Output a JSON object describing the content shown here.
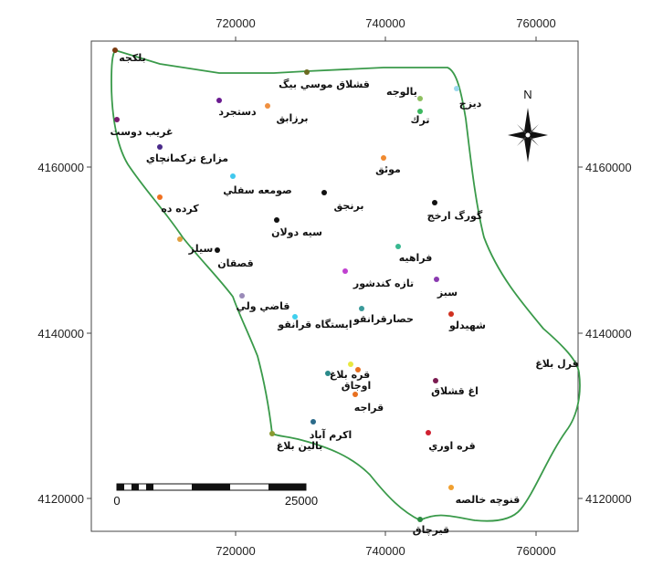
{
  "map": {
    "x_ticks": [
      "720000",
      "740000",
      "760000"
    ],
    "y_ticks": [
      "4160000",
      "4140000",
      "4120000"
    ],
    "boundary_color": "#3a9a4a",
    "north_label": "N",
    "scale_bar": {
      "start": "0",
      "end": "25000"
    }
  },
  "places": [
    {
      "name": "بلكجه",
      "color": "#7a3a10"
    },
    {
      "name": "قشلاق موسي بيگ",
      "color": "#6b6b20"
    },
    {
      "name": "يالوجه",
      "color": "#8fc060"
    },
    {
      "name": "ديزج",
      "color": "#9ad8ee"
    },
    {
      "name": "ترك",
      "color": "#3cb860"
    },
    {
      "name": "دستجرد",
      "color": "#6a1a90"
    },
    {
      "name": "برزابق",
      "color": "#f09040"
    },
    {
      "name": "غريب دوست",
      "color": "#7a1a70"
    },
    {
      "name": "مزارع تركمانچاي",
      "color": "#4a2a8a"
    },
    {
      "name": "صومعه سفلي",
      "color": "#40c8ee"
    },
    {
      "name": "موئق",
      "color": "#f08a30"
    },
    {
      "name": "برنجق",
      "color": "#111111"
    },
    {
      "name": "گورگ ارخج",
      "color": "#111111"
    },
    {
      "name": "كرده ده",
      "color": "#f07020"
    },
    {
      "name": "سيه دولان",
      "color": "#111111"
    },
    {
      "name": "فراهيه",
      "color": "#38b890"
    },
    {
      "name": "سيلز",
      "color": "#e0a040"
    },
    {
      "name": "قصقان",
      "color": "#111111"
    },
    {
      "name": "تازه كندشور",
      "color": "#c040d0"
    },
    {
      "name": "سبز",
      "color": "#8a3ab0"
    },
    {
      "name": "قاضي ولي",
      "color": "#9a8ab8"
    },
    {
      "name": "ايستگاه قرانقو",
      "color": "#40d0ee"
    },
    {
      "name": "حصارقرانقو",
      "color": "#3a9a9a"
    },
    {
      "name": "شهيدلو",
      "color": "#d03020"
    },
    {
      "name": "قرل بلاغ",
      "color": "#e8e840"
    },
    {
      "name": "قره بلاغ",
      "color": "#2a8a8a"
    },
    {
      "name": "اوجاق",
      "color": "#e87020"
    },
    {
      "name": "اغ قشلاق",
      "color": "#7a1a50"
    },
    {
      "name": "قراجه",
      "color": "#e87020"
    },
    {
      "name": "اكرم آباد",
      "color": "#2a6a8a"
    },
    {
      "name": "بالين بلاغ",
      "color": "#8a9a30"
    },
    {
      "name": "قره اوري",
      "color": "#d02030"
    },
    {
      "name": "قنوچه خالصه",
      "color": "#f0a030"
    },
    {
      "name": "قيرچاق",
      "color": "#2a8a40"
    }
  ]
}
